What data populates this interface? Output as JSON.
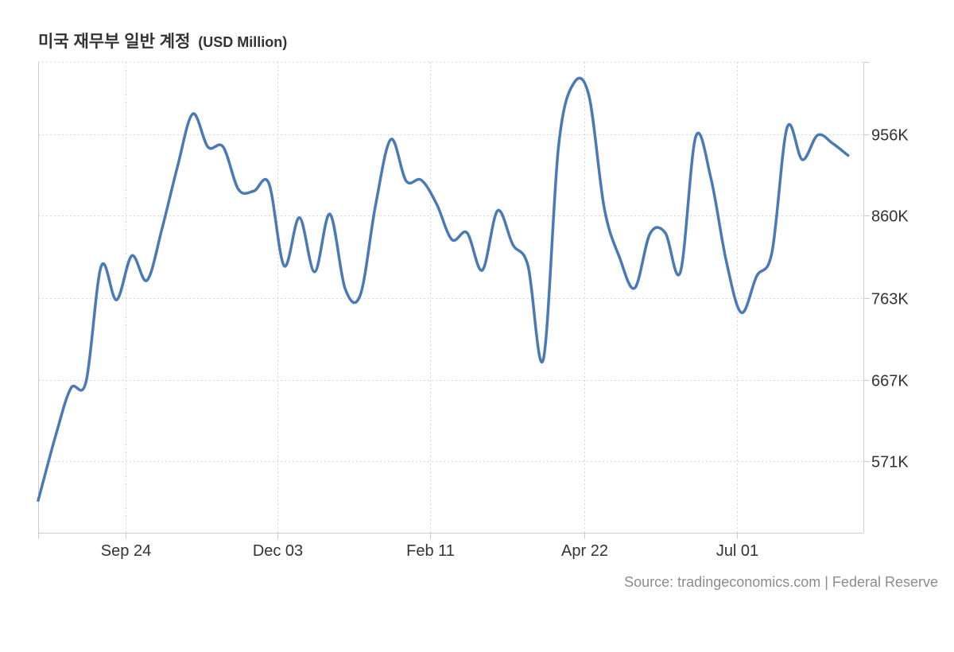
{
  "title": "미국 재무부 일반 계정",
  "unit": "(USD Million)",
  "source": "Source: tradingeconomics.com | Federal Reserve",
  "colors": {
    "line": "#4a7ab5",
    "grid": "#d6d6d6",
    "axis": "#cccccc",
    "text": "#333333",
    "source": "#8c8c8c"
  },
  "chart_data": {
    "type": "line",
    "title": "미국 재무부 일반 계정",
    "ylabel": "",
    "xlabel": "",
    "grid": true,
    "ylim": [
      487,
      1041
    ],
    "xlim": [
      "2023-08-15",
      "2024-08-28"
    ],
    "y_ticks": [
      {
        "value": 571000,
        "label": "571K"
      },
      {
        "value": 667000,
        "label": "667K"
      },
      {
        "value": 763000,
        "label": "763K"
      },
      {
        "value": 860000,
        "label": "860K"
      },
      {
        "value": 956000,
        "label": "956K"
      }
    ],
    "x_ticks": [
      {
        "date": "2023-09-24",
        "label": "Sep 24"
      },
      {
        "date": "2023-12-03",
        "label": "Dec 03"
      },
      {
        "date": "2024-02-11",
        "label": "Feb 11"
      },
      {
        "date": "2024-04-22",
        "label": "Apr 22"
      },
      {
        "date": "2024-07-01",
        "label": "Jul 01"
      }
    ],
    "series": [
      {
        "values": [
          [
            "2023-08-15",
            525000
          ],
          [
            "2023-08-23",
            601000
          ],
          [
            "2023-08-30",
            657000
          ],
          [
            "2023-09-06",
            665000
          ],
          [
            "2023-09-13",
            801000
          ],
          [
            "2023-09-20",
            761000
          ],
          [
            "2023-09-27",
            813000
          ],
          [
            "2023-10-04",
            784000
          ],
          [
            "2023-10-11",
            846000
          ],
          [
            "2023-10-18",
            918000
          ],
          [
            "2023-10-25",
            980000
          ],
          [
            "2023-11-01",
            941000
          ],
          [
            "2023-11-08",
            941000
          ],
          [
            "2023-11-15",
            891000
          ],
          [
            "2023-11-22",
            889000
          ],
          [
            "2023-11-29",
            898000
          ],
          [
            "2023-12-06",
            801000
          ],
          [
            "2023-12-13",
            858000
          ],
          [
            "2023-12-20",
            794000
          ],
          [
            "2023-12-27",
            862000
          ],
          [
            "2024-01-03",
            774000
          ],
          [
            "2024-01-10",
            767000
          ],
          [
            "2024-01-17",
            873000
          ],
          [
            "2024-01-24",
            950000
          ],
          [
            "2024-01-31",
            901000
          ],
          [
            "2024-02-07",
            902000
          ],
          [
            "2024-02-14",
            874000
          ],
          [
            "2024-02-21",
            832000
          ],
          [
            "2024-02-28",
            840000
          ],
          [
            "2024-03-06",
            796000
          ],
          [
            "2024-03-13",
            866000
          ],
          [
            "2024-03-20",
            826000
          ],
          [
            "2024-03-27",
            801000
          ],
          [
            "2024-04-03",
            691000
          ],
          [
            "2024-04-10",
            942000
          ],
          [
            "2024-04-17",
            1016000
          ],
          [
            "2024-04-24",
            1001000
          ],
          [
            "2024-05-01",
            869000
          ],
          [
            "2024-05-08",
            811000
          ],
          [
            "2024-05-15",
            775000
          ],
          [
            "2024-05-22",
            839000
          ],
          [
            "2024-05-29",
            840000
          ],
          [
            "2024-06-05",
            794000
          ],
          [
            "2024-06-12",
            953000
          ],
          [
            "2024-06-19",
            904000
          ],
          [
            "2024-06-26",
            807000
          ],
          [
            "2024-07-03",
            746000
          ],
          [
            "2024-07-10",
            789000
          ],
          [
            "2024-07-17",
            817000
          ],
          [
            "2024-07-24",
            964000
          ],
          [
            "2024-07-31",
            926000
          ],
          [
            "2024-08-07",
            955000
          ],
          [
            "2024-08-14",
            945000
          ],
          [
            "2024-08-21",
            931000
          ]
        ]
      }
    ]
  }
}
